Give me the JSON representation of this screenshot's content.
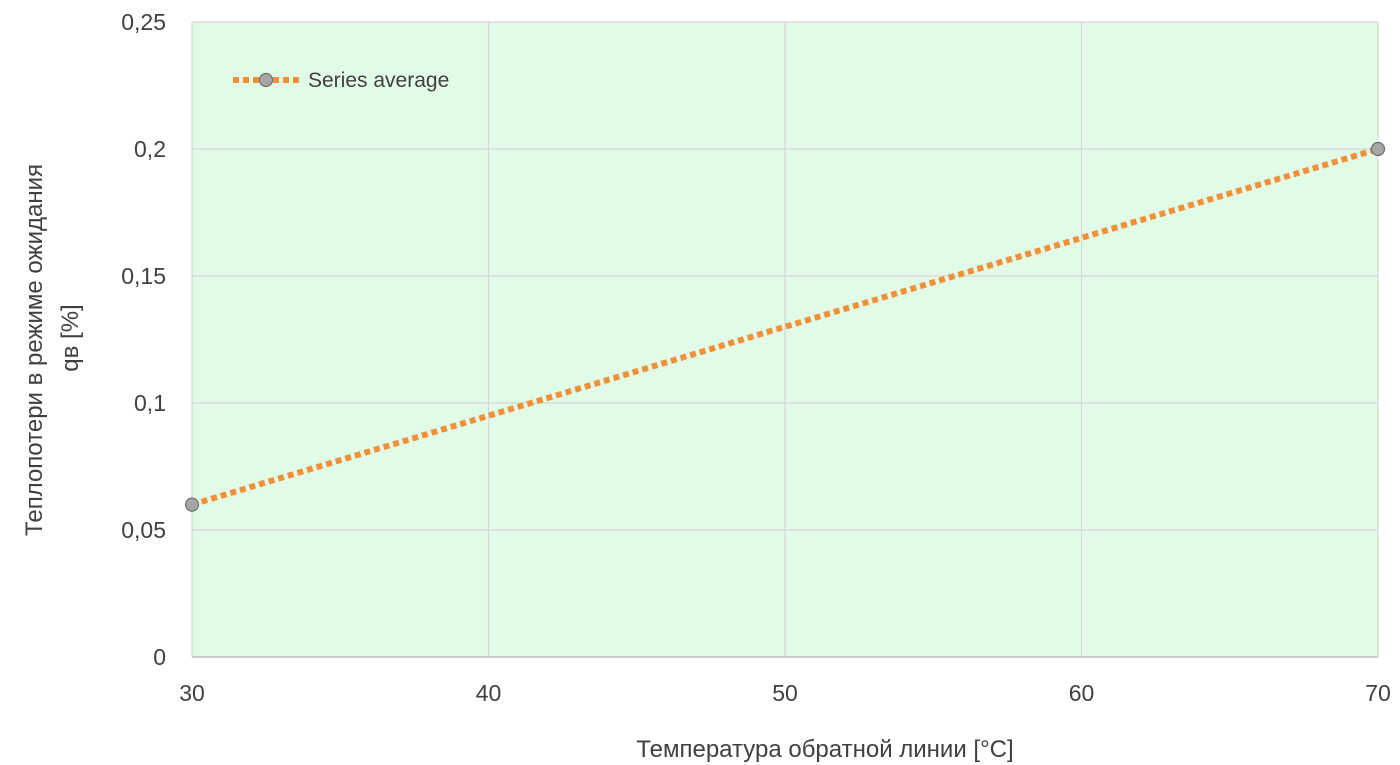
{
  "chart_data": {
    "type": "line",
    "title": "",
    "xlabel": "Температура обратной линии [°C]",
    "ylabel_line1": "Теплопотери в режиме ожидания",
    "ylabel_line2": "qв [%]",
    "xlim": [
      30,
      70
    ],
    "ylim": [
      0,
      0.25
    ],
    "x_ticks": [
      30,
      40,
      50,
      60,
      70
    ],
    "x_tick_labels": [
      "30",
      "40",
      "50",
      "60",
      "70"
    ],
    "y_ticks": [
      0,
      0.05,
      0.1,
      0.15,
      0.2,
      0.25
    ],
    "y_tick_labels": [
      "0",
      "0,05",
      "0,1",
      "0,15",
      "0,2",
      "0,25"
    ],
    "grid": true,
    "legend_position": "top-left",
    "background_color": "#e2fbe6",
    "series": [
      {
        "name": "Series average",
        "color": "#f0913a",
        "line_style": "dotted",
        "marker_color": "#a6a6a6",
        "x": [
          30,
          70
        ],
        "y": [
          0.06,
          0.2
        ]
      }
    ]
  }
}
